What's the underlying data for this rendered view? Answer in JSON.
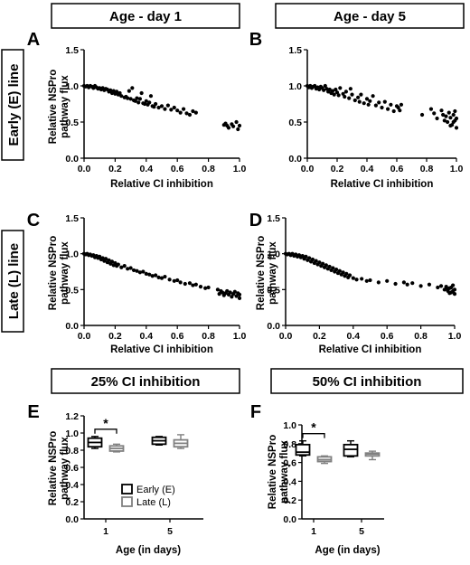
{
  "headers": {
    "day1": "Age - day 1",
    "day5": "Age - day 5",
    "early_line": "Early (E) line",
    "late_line": "Late (L) line",
    "ci25": "25% CI inhibition",
    "ci50": "50% CI inhibition"
  },
  "colors": {
    "early": "#000000",
    "late": "#808080",
    "box_fill": "#ffffff"
  },
  "chart_data": [
    {
      "panel": "A",
      "type": "scatter",
      "xlabel": "Relative CI inhibition",
      "ylabel": "Relative NSPro pathway flux",
      "xlim": [
        0,
        1
      ],
      "ylim": [
        0,
        1.5
      ],
      "x_ticks": [
        "0.0",
        "0.2",
        "0.4",
        "0.6",
        "0.8",
        "1.0"
      ],
      "y_ticks": [
        "0.0",
        "0.5",
        "1.0",
        "1.5"
      ],
      "points": [
        [
          0.0,
          1.0
        ],
        [
          0.01,
          0.99
        ],
        [
          0.02,
          1.0
        ],
        [
          0.03,
          0.98
        ],
        [
          0.04,
          1.0
        ],
        [
          0.05,
          0.99
        ],
        [
          0.06,
          0.97
        ],
        [
          0.07,
          1.0
        ],
        [
          0.08,
          0.98
        ],
        [
          0.09,
          0.96
        ],
        [
          0.1,
          0.97
        ],
        [
          0.11,
          0.95
        ],
        [
          0.12,
          0.97
        ],
        [
          0.13,
          0.94
        ],
        [
          0.14,
          0.96
        ],
        [
          0.15,
          0.95
        ],
        [
          0.16,
          0.92
        ],
        [
          0.17,
          0.94
        ],
        [
          0.18,
          0.9
        ],
        [
          0.19,
          0.93
        ],
        [
          0.2,
          0.89
        ],
        [
          0.21,
          0.92
        ],
        [
          0.22,
          0.88
        ],
        [
          0.23,
          0.9
        ],
        [
          0.24,
          0.86
        ],
        [
          0.26,
          0.84
        ],
        [
          0.27,
          0.85
        ],
        [
          0.28,
          0.83
        ],
        [
          0.29,
          0.93
        ],
        [
          0.3,
          0.82
        ],
        [
          0.31,
          0.97
        ],
        [
          0.32,
          0.8
        ],
        [
          0.33,
          0.79
        ],
        [
          0.34,
          0.83
        ],
        [
          0.35,
          0.77
        ],
        [
          0.36,
          0.82
        ],
        [
          0.37,
          0.9
        ],
        [
          0.38,
          0.76
        ],
        [
          0.39,
          0.75
        ],
        [
          0.4,
          0.79
        ],
        [
          0.41,
          0.74
        ],
        [
          0.42,
          0.77
        ],
        [
          0.43,
          0.86
        ],
        [
          0.44,
          0.72
        ],
        [
          0.45,
          0.71
        ],
        [
          0.46,
          0.75
        ],
        [
          0.48,
          0.7
        ],
        [
          0.5,
          0.72
        ],
        [
          0.52,
          0.68
        ],
        [
          0.54,
          0.73
        ],
        [
          0.56,
          0.67
        ],
        [
          0.58,
          0.7
        ],
        [
          0.6,
          0.66
        ],
        [
          0.62,
          0.63
        ],
        [
          0.64,
          0.68
        ],
        [
          0.66,
          0.62
        ],
        [
          0.68,
          0.6
        ],
        [
          0.7,
          0.65
        ],
        [
          0.72,
          0.63
        ],
        [
          0.9,
          0.46
        ],
        [
          0.91,
          0.48
        ],
        [
          0.92,
          0.45
        ],
        [
          0.93,
          0.42
        ],
        [
          0.95,
          0.47
        ],
        [
          0.96,
          0.44
        ],
        [
          0.98,
          0.5
        ],
        [
          0.99,
          0.4
        ],
        [
          1.0,
          0.45
        ]
      ]
    },
    {
      "panel": "B",
      "type": "scatter",
      "xlabel": "Relative CI inhibition",
      "ylabel": "",
      "xlim": [
        0,
        1
      ],
      "ylim": [
        0,
        1.5
      ],
      "x_ticks": [
        "0.0",
        "0.2",
        "0.4",
        "0.6",
        "0.8",
        "1.0"
      ],
      "y_ticks": [
        "0.0",
        "0.5",
        "1.0",
        "1.5"
      ],
      "points": [
        [
          0.0,
          1.0
        ],
        [
          0.01,
          0.98
        ],
        [
          0.02,
          1.0
        ],
        [
          0.03,
          0.97
        ],
        [
          0.04,
          0.99
        ],
        [
          0.05,
          1.0
        ],
        [
          0.06,
          0.96
        ],
        [
          0.07,
          0.98
        ],
        [
          0.08,
          0.95
        ],
        [
          0.09,
          0.99
        ],
        [
          0.1,
          0.97
        ],
        [
          0.11,
          0.94
        ],
        [
          0.12,
          1.0
        ],
        [
          0.13,
          0.96
        ],
        [
          0.14,
          0.92
        ],
        [
          0.15,
          0.95
        ],
        [
          0.16,
          0.9
        ],
        [
          0.17,
          0.93
        ],
        [
          0.18,
          0.88
        ],
        [
          0.19,
          0.95
        ],
        [
          0.2,
          0.91
        ],
        [
          0.21,
          0.87
        ],
        [
          0.22,
          0.97
        ],
        [
          0.24,
          0.89
        ],
        [
          0.25,
          0.85
        ],
        [
          0.26,
          0.92
        ],
        [
          0.28,
          0.83
        ],
        [
          0.29,
          0.96
        ],
        [
          0.3,
          0.88
        ],
        [
          0.32,
          0.8
        ],
        [
          0.34,
          0.84
        ],
        [
          0.35,
          0.78
        ],
        [
          0.36,
          0.88
        ],
        [
          0.38,
          0.76
        ],
        [
          0.4,
          0.82
        ],
        [
          0.41,
          0.74
        ],
        [
          0.42,
          0.79
        ],
        [
          0.44,
          0.86
        ],
        [
          0.46,
          0.73
        ],
        [
          0.48,
          0.77
        ],
        [
          0.5,
          0.7
        ],
        [
          0.52,
          0.78
        ],
        [
          0.54,
          0.68
        ],
        [
          0.56,
          0.74
        ],
        [
          0.58,
          0.65
        ],
        [
          0.6,
          0.72
        ],
        [
          0.61,
          0.7
        ],
        [
          0.62,
          0.66
        ],
        [
          0.63,
          0.74
        ],
        [
          0.77,
          0.6
        ],
        [
          0.83,
          0.68
        ],
        [
          0.85,
          0.62
        ],
        [
          0.87,
          0.55
        ],
        [
          0.9,
          0.66
        ],
        [
          0.91,
          0.6
        ],
        [
          0.92,
          0.52
        ],
        [
          0.93,
          0.58
        ],
        [
          0.94,
          0.5
        ],
        [
          0.95,
          0.63
        ],
        [
          0.96,
          0.56
        ],
        [
          0.97,
          0.46
        ],
        [
          0.98,
          0.6
        ],
        [
          0.99,
          0.52
        ],
        [
          1.0,
          0.42
        ],
        [
          1.0,
          0.55
        ],
        [
          0.99,
          0.65
        ],
        [
          0.96,
          0.45
        ],
        [
          0.98,
          0.5
        ]
      ]
    },
    {
      "panel": "C",
      "type": "scatter",
      "xlabel": "Relative CI inhibition",
      "ylabel": "Relative NSPro pathway flux",
      "xlim": [
        0,
        1
      ],
      "ylim": [
        0,
        1.5
      ],
      "x_ticks": [
        "0.0",
        "0.2",
        "0.4",
        "0.6",
        "0.8",
        "1.0"
      ],
      "y_ticks": [
        "0.0",
        "0.5",
        "1.0",
        "1.5"
      ],
      "points": [
        [
          0.0,
          1.0
        ],
        [
          0.01,
          0.99
        ],
        [
          0.02,
          1.0
        ],
        [
          0.03,
          0.98
        ],
        [
          0.04,
          0.99
        ],
        [
          0.05,
          0.97
        ],
        [
          0.06,
          0.98
        ],
        [
          0.07,
          0.95
        ],
        [
          0.08,
          0.97
        ],
        [
          0.09,
          0.94
        ],
        [
          0.1,
          0.96
        ],
        [
          0.11,
          0.92
        ],
        [
          0.12,
          0.94
        ],
        [
          0.13,
          0.9
        ],
        [
          0.14,
          0.93
        ],
        [
          0.15,
          0.88
        ],
        [
          0.16,
          0.91
        ],
        [
          0.17,
          0.86
        ],
        [
          0.18,
          0.89
        ],
        [
          0.19,
          0.84
        ],
        [
          0.2,
          0.87
        ],
        [
          0.21,
          0.83
        ],
        [
          0.22,
          0.85
        ],
        [
          0.24,
          0.81
        ],
        [
          0.26,
          0.83
        ],
        [
          0.28,
          0.79
        ],
        [
          0.3,
          0.8
        ],
        [
          0.32,
          0.77
        ],
        [
          0.34,
          0.76
        ],
        [
          0.36,
          0.74
        ],
        [
          0.38,
          0.75
        ],
        [
          0.4,
          0.72
        ],
        [
          0.42,
          0.71
        ],
        [
          0.44,
          0.69
        ],
        [
          0.46,
          0.7
        ],
        [
          0.48,
          0.67
        ],
        [
          0.5,
          0.66
        ],
        [
          0.52,
          0.68
        ],
        [
          0.55,
          0.64
        ],
        [
          0.58,
          0.62
        ],
        [
          0.6,
          0.63
        ],
        [
          0.62,
          0.6
        ],
        [
          0.65,
          0.58
        ],
        [
          0.68,
          0.59
        ],
        [
          0.7,
          0.56
        ],
        [
          0.72,
          0.57
        ],
        [
          0.75,
          0.54
        ],
        [
          0.78,
          0.52
        ],
        [
          0.8,
          0.53
        ],
        [
          0.86,
          0.5
        ],
        [
          0.87,
          0.44
        ],
        [
          0.88,
          0.48
        ],
        [
          0.89,
          0.46
        ],
        [
          0.9,
          0.42
        ],
        [
          0.91,
          0.45
        ],
        [
          0.92,
          0.48
        ],
        [
          0.93,
          0.43
        ],
        [
          0.94,
          0.46
        ],
        [
          0.95,
          0.4
        ],
        [
          0.96,
          0.44
        ],
        [
          0.97,
          0.47
        ],
        [
          0.98,
          0.41
        ],
        [
          0.99,
          0.45
        ],
        [
          1.0,
          0.38
        ],
        [
          1.0,
          0.43
        ]
      ]
    },
    {
      "panel": "D",
      "type": "scatter",
      "xlabel": "Relative CI inhibition",
      "ylabel": "Relative NSPro pathway flux",
      "xlim": [
        0,
        1
      ],
      "ylim": [
        0,
        1.5
      ],
      "x_ticks": [
        "0.0",
        "0.2",
        "0.4",
        "0.6",
        "0.8",
        "1.0"
      ],
      "y_ticks": [
        "0.0",
        "0.5",
        "1.0",
        "1.5"
      ],
      "points": [
        [
          0.0,
          1.0
        ],
        [
          0.01,
          0.99
        ],
        [
          0.02,
          1.0
        ],
        [
          0.03,
          0.98
        ],
        [
          0.04,
          1.0
        ],
        [
          0.05,
          0.97
        ],
        [
          0.06,
          0.99
        ],
        [
          0.07,
          0.96
        ],
        [
          0.08,
          0.98
        ],
        [
          0.09,
          0.95
        ],
        [
          0.1,
          0.97
        ],
        [
          0.11,
          0.93
        ],
        [
          0.12,
          0.96
        ],
        [
          0.13,
          0.91
        ],
        [
          0.14,
          0.94
        ],
        [
          0.15,
          0.89
        ],
        [
          0.16,
          0.92
        ],
        [
          0.17,
          0.87
        ],
        [
          0.18,
          0.9
        ],
        [
          0.19,
          0.85
        ],
        [
          0.2,
          0.88
        ],
        [
          0.21,
          0.83
        ],
        [
          0.22,
          0.86
        ],
        [
          0.23,
          0.81
        ],
        [
          0.24,
          0.84
        ],
        [
          0.25,
          0.79
        ],
        [
          0.26,
          0.82
        ],
        [
          0.27,
          0.77
        ],
        [
          0.28,
          0.8
        ],
        [
          0.29,
          0.75
        ],
        [
          0.3,
          0.78
        ],
        [
          0.31,
          0.73
        ],
        [
          0.32,
          0.76
        ],
        [
          0.33,
          0.71
        ],
        [
          0.34,
          0.74
        ],
        [
          0.35,
          0.69
        ],
        [
          0.36,
          0.72
        ],
        [
          0.37,
          0.67
        ],
        [
          0.38,
          0.7
        ],
        [
          0.4,
          0.66
        ],
        [
          0.42,
          0.64
        ],
        [
          0.45,
          0.65
        ],
        [
          0.48,
          0.62
        ],
        [
          0.5,
          0.63
        ],
        [
          0.55,
          0.6
        ],
        [
          0.6,
          0.62
        ],
        [
          0.65,
          0.58
        ],
        [
          0.7,
          0.6
        ],
        [
          0.72,
          0.57
        ],
        [
          0.75,
          0.59
        ],
        [
          0.8,
          0.55
        ],
        [
          0.85,
          0.57
        ],
        [
          0.9,
          0.53
        ],
        [
          0.92,
          0.55
        ],
        [
          0.94,
          0.5
        ],
        [
          0.95,
          0.54
        ],
        [
          0.96,
          0.48
        ],
        [
          0.97,
          0.52
        ],
        [
          0.98,
          0.46
        ],
        [
          0.99,
          0.56
        ],
        [
          1.0,
          0.5
        ],
        [
          1.0,
          0.44
        ],
        [
          0.99,
          0.48
        ],
        [
          0.98,
          0.53
        ],
        [
          0.97,
          0.45
        ],
        [
          0.96,
          0.51
        ]
      ]
    },
    {
      "panel": "E",
      "type": "box",
      "ylabel": "Relative NSPro pathway flux",
      "xlabel": "Age (in days)",
      "ylim": [
        0,
        1.2
      ],
      "y_ticks": [
        "0.0",
        "0.2",
        "0.4",
        "0.6",
        "0.8",
        "1.0",
        "1.2"
      ],
      "categories": [
        "1",
        "5"
      ],
      "series": [
        {
          "name": "Early (E)",
          "boxes": [
            [
              0.82,
              0.84,
              0.89,
              0.94,
              0.96
            ],
            [
              0.86,
              0.87,
              0.91,
              0.95,
              0.96
            ]
          ]
        },
        {
          "name": "Late (L)",
          "boxes": [
            [
              0.78,
              0.79,
              0.82,
              0.85,
              0.87
            ],
            [
              0.82,
              0.84,
              0.88,
              0.92,
              0.98
            ]
          ]
        }
      ],
      "annotation": "*"
    },
    {
      "panel": "F",
      "type": "box",
      "ylabel": "Relative NSPro pathway flux",
      "xlabel": "Age (in days)",
      "ylim": [
        0,
        1.0
      ],
      "y_ticks": [
        "0.0",
        "0.2",
        "0.4",
        "0.6",
        "0.8",
        "1.0"
      ],
      "categories": [
        "1",
        "5"
      ],
      "series": [
        {
          "name": "Early (E)",
          "boxes": [
            [
              0.67,
              0.68,
              0.71,
              0.79,
              0.83
            ],
            [
              0.66,
              0.67,
              0.74,
              0.79,
              0.83
            ]
          ]
        },
        {
          "name": "Late (L)",
          "boxes": [
            [
              0.59,
              0.61,
              0.63,
              0.66,
              0.67
            ],
            [
              0.63,
              0.67,
              0.69,
              0.7,
              0.72
            ]
          ]
        }
      ],
      "annotation": "*"
    }
  ]
}
